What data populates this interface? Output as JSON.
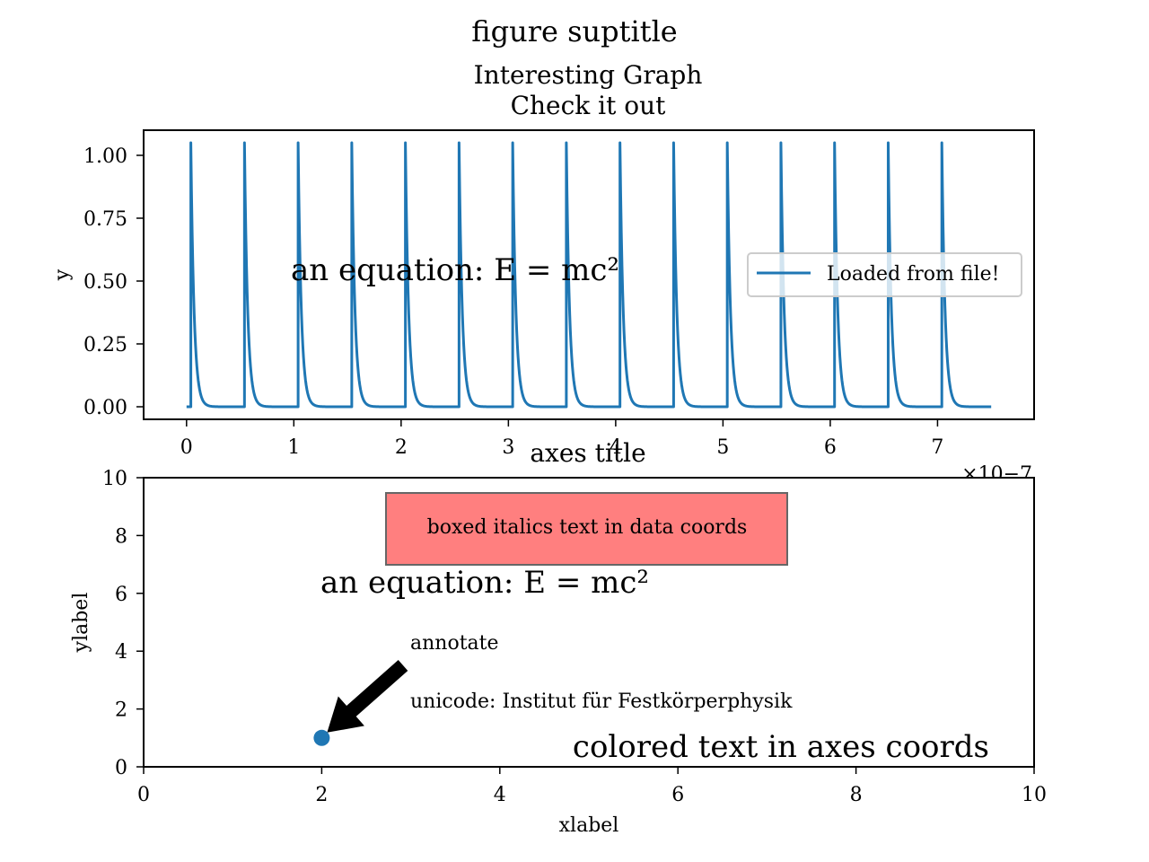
{
  "figure": {
    "suptitle": "figure suptitle"
  },
  "chart_data": [
    {
      "type": "line",
      "title_line1": "Interesting Graph",
      "title_line2": "Check it out",
      "xlabel": "",
      "ylabel": "y",
      "x_offset_text": "×10−7",
      "xlim": [
        -0.4,
        7.9
      ],
      "ylim": [
        -0.05,
        1.1
      ],
      "x_scale": 1e-07,
      "xticks": [
        0,
        1,
        2,
        3,
        4,
        5,
        6,
        7
      ],
      "xtick_labels": [
        "0",
        "1",
        "2",
        "3",
        "4",
        "5",
        "6",
        "7"
      ],
      "yticks": [
        0.0,
        0.25,
        0.5,
        0.75,
        1.0
      ],
      "ytick_labels": [
        "0.00",
        "0.25",
        "0.50",
        "0.75",
        "1.00"
      ],
      "grid": false,
      "legend_position": "center-right",
      "series": [
        {
          "name": "Loaded from file!",
          "color": "#1f77b4",
          "pulse": {
            "period": 0.5,
            "first_rise": 0.04,
            "count": 15,
            "peak": 1.05,
            "decay": 0.03,
            "x_end": 7.5,
            "baseline": 0.0
          }
        }
      ],
      "annotations": [
        {
          "text": "an equation: E = mc²",
          "x": 1.0,
          "y": 0.5
        }
      ]
    },
    {
      "type": "scatter",
      "title": "axes title",
      "xlabel": "xlabel",
      "ylabel": "ylabel",
      "xlim": [
        0,
        10
      ],
      "ylim": [
        0,
        10
      ],
      "xticks": [
        0,
        2,
        4,
        6,
        8,
        10
      ],
      "xtick_labels": [
        "0",
        "2",
        "4",
        "6",
        "8",
        "10"
      ],
      "yticks": [
        0,
        2,
        4,
        6,
        8,
        10
      ],
      "ytick_labels": [
        "0",
        "2",
        "4",
        "6",
        "8",
        "10"
      ],
      "grid": false,
      "points": [
        {
          "x": 2,
          "y": 1,
          "color": "#1f77b4"
        }
      ],
      "boxed_text": {
        "text": "boxed italics text in data coords",
        "x": 3,
        "y": 8,
        "face_color": "#ff7f7f",
        "edge_color": "#666666"
      },
      "equation": {
        "text": "an equation: E = mc²",
        "x": 2,
        "y": 6
      },
      "unicode_text": {
        "text": "unicode: Institut für Festkörperphysik",
        "x": 3,
        "y": 2
      },
      "annotation": {
        "text": "annotate",
        "xy": [
          2,
          1
        ],
        "xytext": [
          3,
          4
        ],
        "arrow_color": "#000000"
      },
      "colored_text": {
        "text": "colored text in axes coords",
        "color": "#008000",
        "position": "bottom-right"
      }
    }
  ]
}
